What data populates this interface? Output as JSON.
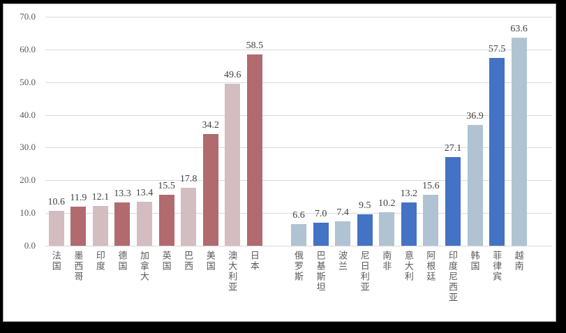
{
  "chart_data": {
    "type": "bar",
    "title": "",
    "xlabel": "",
    "ylabel": "",
    "categories": [
      "法国",
      "墨西哥",
      "印度",
      "德国",
      "加拿大",
      "英国",
      "巴西",
      "美国",
      "澳大利亚",
      "日本",
      "俄罗斯",
      "巴基斯坦",
      "波兰",
      "尼日利亚",
      "南非",
      "意大利",
      "阿根廷",
      "印度尼西亚",
      "韩国",
      "菲律宾",
      "越南"
    ],
    "values": [
      10.6,
      11.9,
      12.1,
      13.3,
      13.4,
      15.5,
      17.8,
      34.2,
      49.6,
      58.5,
      6.6,
      7.0,
      7.4,
      9.5,
      10.2,
      13.2,
      15.6,
      27.1,
      36.9,
      57.5,
      63.6
    ],
    "value_labels": [
      "10.6",
      "11.9",
      "12.1",
      "13.3",
      "13.4",
      "15.5",
      "17.8",
      "34.2",
      "49.6",
      "58.5",
      "6.6",
      "7.0",
      "7.4",
      "9.5",
      "10.2",
      "13.2",
      "15.6",
      "27.1",
      "36.9",
      "57.5",
      "63.6"
    ],
    "bar_colors": [
      "#D3BDC1",
      "#B16A6E",
      "#D3BDC1",
      "#B16A6E",
      "#D3BDC1",
      "#B16A6E",
      "#D3BDC1",
      "#B16A6E",
      "#D3BDC1",
      "#B16A6E",
      "#AFC3D3",
      "#4472C4",
      "#AFC3D3",
      "#4472C4",
      "#AFC3D3",
      "#4472C4",
      "#AFC3D3",
      "#4472C4",
      "#AFC3D3",
      "#4472C4",
      "#AFC3D3"
    ],
    "groups": [
      {
        "name": "left-group",
        "indices": [
          0,
          9
        ],
        "light_color": "#D3BDC1",
        "dark_color": "#B16A6E"
      },
      {
        "name": "right-group",
        "indices": [
          10,
          20
        ],
        "light_color": "#AFC3D3",
        "dark_color": "#4472C4"
      }
    ],
    "gap_after_index": 9,
    "ylim": [
      0,
      70
    ],
    "ytick_interval": 10,
    "ytick_labels": [
      "0.0",
      "10.0",
      "20.0",
      "30.0",
      "40.0",
      "50.0",
      "60.0",
      "70.0"
    ],
    "grid": true,
    "legend": "none",
    "colors": {
      "gridline": "#d9d9d9",
      "axis_text": "#595959",
      "value_label_text": "#404040",
      "panel_background": "#ffffff",
      "panel_border": "#a3a3a3",
      "outer_frame": "#000000"
    }
  }
}
